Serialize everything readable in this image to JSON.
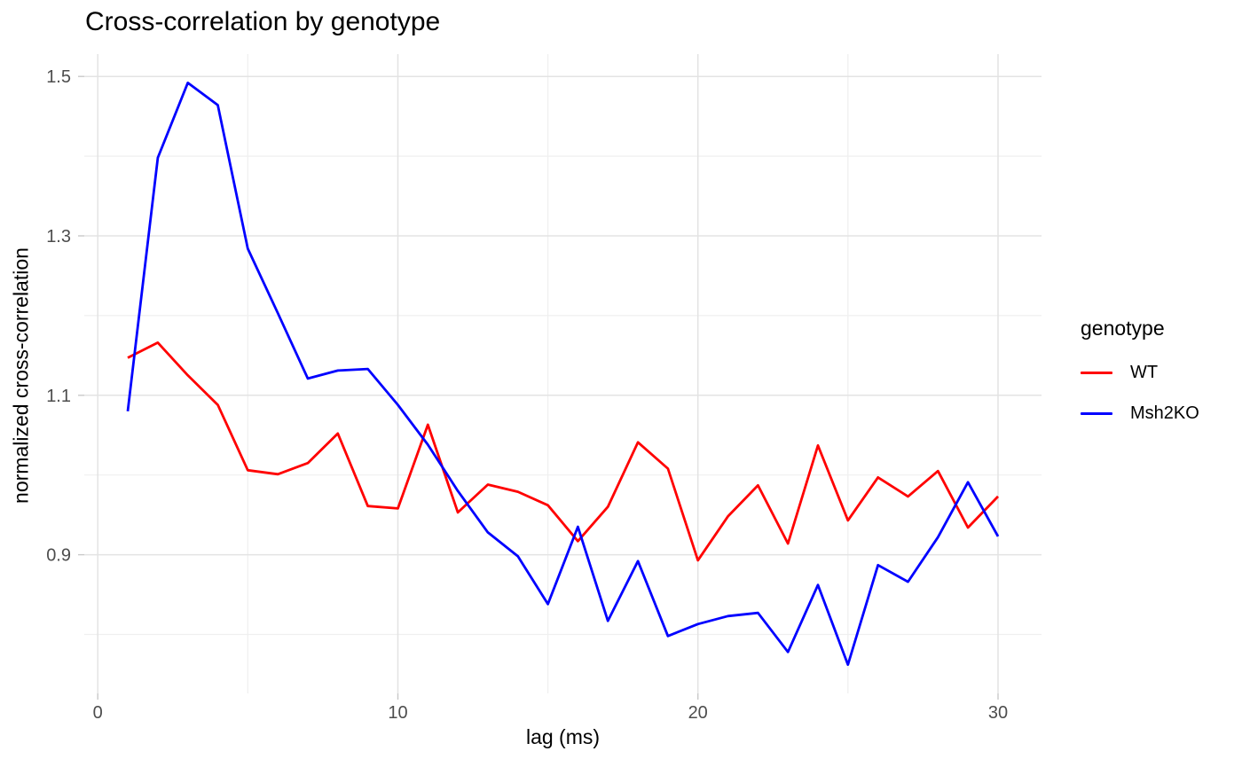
{
  "chart_data": {
    "type": "line",
    "title": "Cross-correlation by genotype",
    "xlabel": "lag (ms)",
    "ylabel": "normalized cross-correlation",
    "x": [
      1,
      2,
      3,
      4,
      5,
      6,
      7,
      8,
      9,
      10,
      11,
      12,
      13,
      14,
      15,
      16,
      17,
      18,
      19,
      20,
      21,
      22,
      23,
      24,
      25,
      26,
      27,
      28,
      29,
      30
    ],
    "series": [
      {
        "name": "WT",
        "color": "#ff0000",
        "values": [
          1.147,
          1.166,
          1.125,
          1.088,
          1.006,
          1.001,
          1.015,
          1.052,
          0.961,
          0.958,
          1.063,
          0.953,
          0.988,
          0.979,
          0.962,
          0.917,
          0.96,
          1.041,
          1.008,
          0.893,
          0.948,
          0.987,
          0.914,
          1.037,
          0.943,
          0.997,
          0.973,
          1.005,
          0.934,
          0.973
        ]
      },
      {
        "name": "Msh2KO",
        "color": "#0000ff",
        "values": [
          1.08,
          1.398,
          1.492,
          1.464,
          1.284,
          1.203,
          1.121,
          1.131,
          1.133,
          1.088,
          1.038,
          0.98,
          0.928,
          0.898,
          0.838,
          0.935,
          0.817,
          0.892,
          0.798,
          0.813,
          0.823,
          0.827,
          0.778,
          0.862,
          0.762,
          0.887,
          0.866,
          0.922,
          0.991,
          0.923
        ]
      }
    ],
    "xlim": [
      -0.45,
      31.45
    ],
    "ylim": [
      0.726,
      1.528
    ],
    "x_axis": {
      "major_ticks": [
        {
          "value": 0,
          "label": "0"
        },
        {
          "value": 10,
          "label": "10"
        },
        {
          "value": 20,
          "label": "20"
        },
        {
          "value": 30,
          "label": "30"
        }
      ],
      "minor_ticks": [
        5,
        15,
        25
      ]
    },
    "y_axis": {
      "major_ticks": [
        {
          "value": 0.9,
          "label": "0.9"
        },
        {
          "value": 1.1,
          "label": "1.1"
        },
        {
          "value": 1.3,
          "label": "1.3"
        },
        {
          "value": 1.5,
          "label": "1.5"
        }
      ],
      "minor_ticks": [
        0.8,
        1.0,
        1.2,
        1.4
      ]
    },
    "grid": true,
    "legend": {
      "title": "genotype",
      "position": "right",
      "items": [
        {
          "label": "WT",
          "color": "#ff0000"
        },
        {
          "label": "Msh2KO",
          "color": "#0000ff"
        }
      ]
    }
  },
  "style": {
    "background": "#ffffff",
    "grid_major_color": "#e3e3e3",
    "grid_minor_color": "#efefef",
    "tick_mark_color": "#c9c9c9",
    "tick_label_color": "#4d4d4d",
    "text_color": "#000000"
  }
}
